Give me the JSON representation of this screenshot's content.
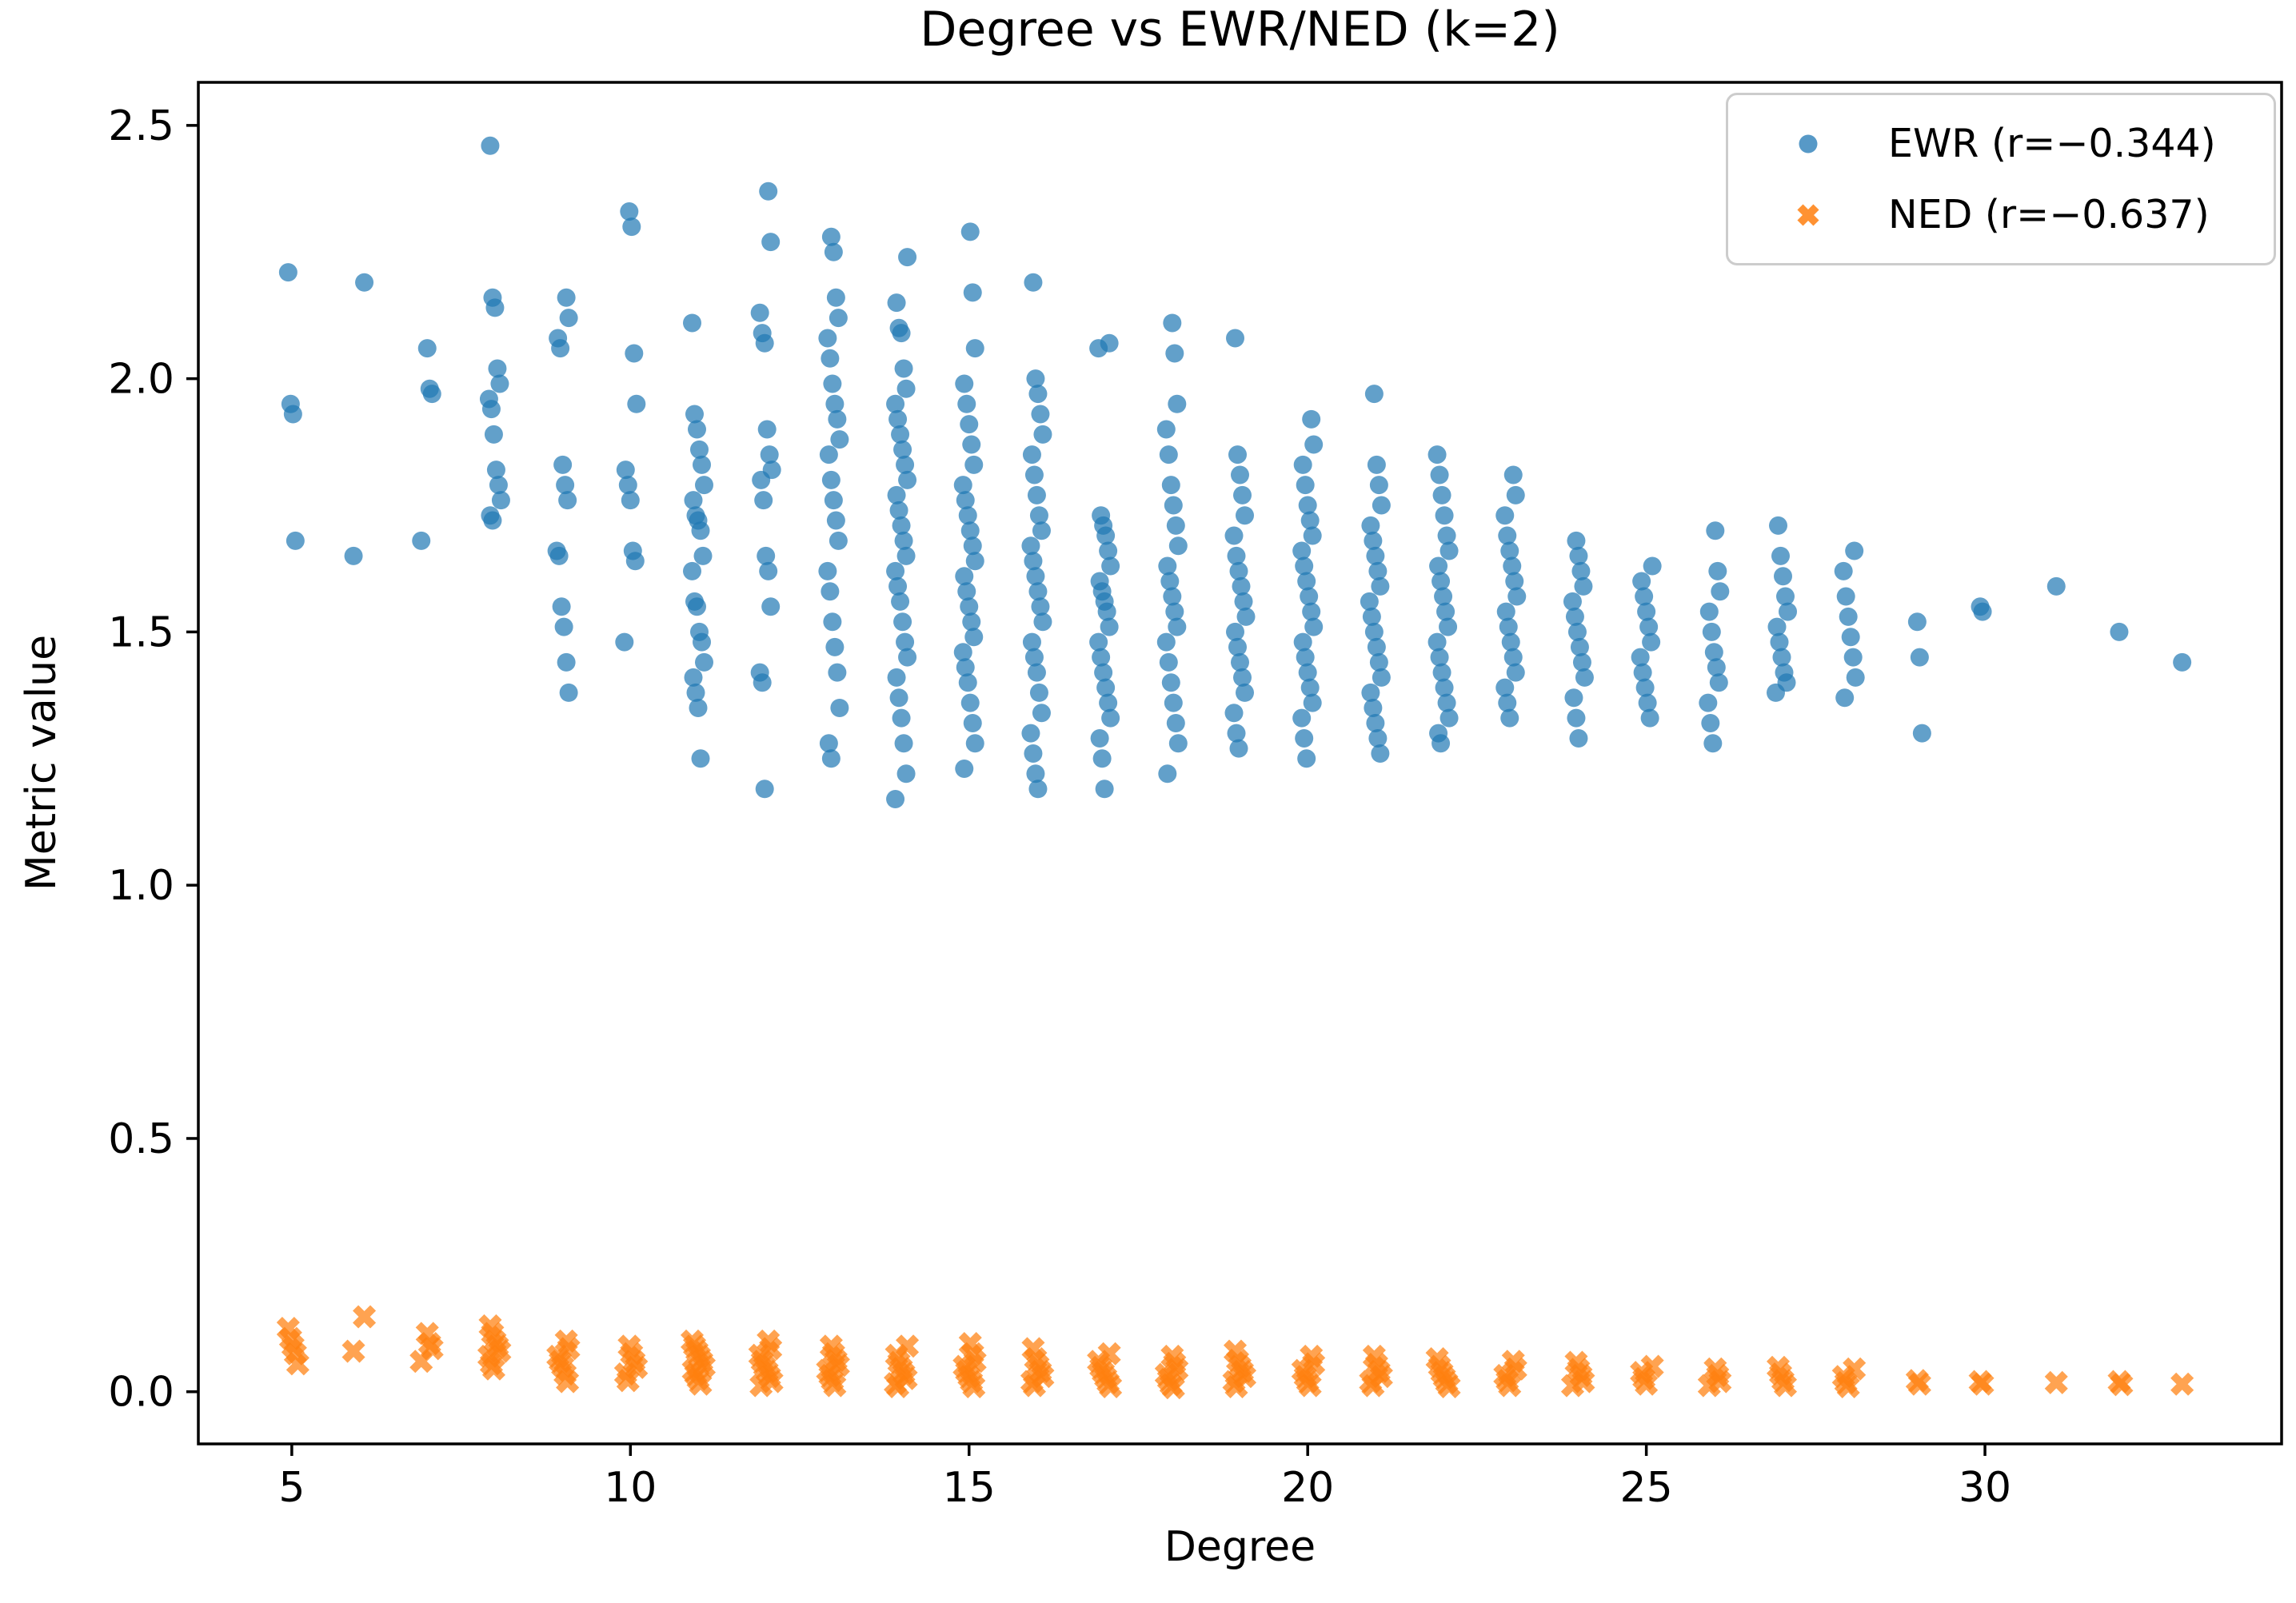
{
  "figure": {
    "title": "Degree vs EWR/NED (k=2)",
    "xlabel": "Degree",
    "ylabel": "Metric value"
  },
  "legend": {
    "entries": [
      {
        "label": "EWR (r=−0.344)",
        "marker": "circle-icon",
        "color": "#1f77b4"
      },
      {
        "label": "NED (r=−0.637)",
        "marker": "x-icon",
        "color": "#ff7f0e"
      }
    ]
  },
  "chart_data": {
    "type": "scatter",
    "title": "Degree vs EWR/NED (k=2)",
    "xlabel": "Degree",
    "ylabel": "Metric value",
    "xlim": [
      3.62,
      34.38
    ],
    "ylim": [
      -0.103,
      2.585
    ],
    "xticks": [
      5,
      10,
      15,
      20,
      25,
      30
    ],
    "yticks": [
      0.0,
      0.5,
      1.0,
      1.5,
      2.0,
      2.5
    ],
    "grid": false,
    "legend_position": "upper right",
    "series": [
      {
        "name": "EWR (r=−0.344)",
        "marker": "circle",
        "color": "#1f77b4",
        "alpha": 0.7,
        "points_by_degree": {
          "5": [
            2.21,
            1.95,
            1.93,
            1.68
          ],
          "6": [
            2.19,
            1.65
          ],
          "7": [
            2.06,
            1.98,
            1.97,
            1.68
          ],
          "8": [
            2.46,
            2.16,
            2.14,
            2.02,
            1.99,
            1.96,
            1.94,
            1.89,
            1.82,
            1.79,
            1.76,
            1.73,
            1.72
          ],
          "9": [
            2.16,
            2.12,
            2.08,
            2.06,
            1.83,
            1.79,
            1.76,
            1.66,
            1.65,
            1.55,
            1.51,
            1.44,
            1.38
          ],
          "10": [
            2.33,
            2.3,
            2.05,
            1.95,
            1.82,
            1.79,
            1.76,
            1.66,
            1.64,
            1.48
          ],
          "11": [
            2.11,
            1.93,
            1.9,
            1.86,
            1.83,
            1.79,
            1.76,
            1.73,
            1.72,
            1.7,
            1.65,
            1.62,
            1.56,
            1.55,
            1.5,
            1.48,
            1.44,
            1.41,
            1.38,
            1.35,
            1.25
          ],
          "12": [
            2.37,
            2.27,
            2.13,
            2.09,
            2.07,
            1.9,
            1.85,
            1.82,
            1.8,
            1.76,
            1.65,
            1.62,
            1.55,
            1.42,
            1.4,
            1.19
          ],
          "13": [
            2.28,
            2.25,
            2.16,
            2.12,
            2.08,
            2.04,
            1.99,
            1.95,
            1.92,
            1.88,
            1.85,
            1.8,
            1.76,
            1.72,
            1.68,
            1.62,
            1.58,
            1.52,
            1.47,
            1.42,
            1.35,
            1.28,
            1.25
          ],
          "14": [
            2.24,
            2.15,
            2.1,
            2.09,
            2.02,
            1.98,
            1.95,
            1.92,
            1.89,
            1.86,
            1.83,
            1.8,
            1.77,
            1.74,
            1.71,
            1.68,
            1.65,
            1.62,
            1.59,
            1.56,
            1.52,
            1.48,
            1.45,
            1.41,
            1.37,
            1.33,
            1.28,
            1.22,
            1.17
          ],
          "15": [
            2.29,
            2.17,
            2.06,
            1.99,
            1.95,
            1.91,
            1.87,
            1.83,
            1.79,
            1.76,
            1.73,
            1.7,
            1.67,
            1.64,
            1.61,
            1.58,
            1.55,
            1.52,
            1.49,
            1.46,
            1.43,
            1.4,
            1.36,
            1.32,
            1.28,
            1.23
          ],
          "16": [
            2.19,
            2.0,
            1.97,
            1.93,
            1.89,
            1.85,
            1.81,
            1.77,
            1.73,
            1.7,
            1.67,
            1.64,
            1.61,
            1.58,
            1.55,
            1.52,
            1.48,
            1.45,
            1.42,
            1.38,
            1.34,
            1.3,
            1.26,
            1.22,
            1.19
          ],
          "17": [
            2.07,
            2.06,
            1.73,
            1.71,
            1.69,
            1.66,
            1.63,
            1.6,
            1.58,
            1.56,
            1.54,
            1.51,
            1.48,
            1.45,
            1.42,
            1.39,
            1.36,
            1.33,
            1.29,
            1.25,
            1.19
          ],
          "18": [
            2.11,
            2.05,
            1.95,
            1.9,
            1.85,
            1.79,
            1.75,
            1.71,
            1.67,
            1.63,
            1.6,
            1.57,
            1.54,
            1.51,
            1.48,
            1.44,
            1.4,
            1.36,
            1.32,
            1.28,
            1.22
          ],
          "19": [
            2.08,
            1.85,
            1.81,
            1.77,
            1.73,
            1.69,
            1.65,
            1.62,
            1.59,
            1.56,
            1.53,
            1.5,
            1.47,
            1.44,
            1.41,
            1.38,
            1.34,
            1.3,
            1.27
          ],
          "20": [
            1.92,
            1.87,
            1.83,
            1.79,
            1.75,
            1.72,
            1.69,
            1.66,
            1.63,
            1.6,
            1.57,
            1.54,
            1.51,
            1.48,
            1.45,
            1.42,
            1.39,
            1.36,
            1.33,
            1.29,
            1.25
          ],
          "21": [
            1.97,
            1.83,
            1.79,
            1.75,
            1.71,
            1.68,
            1.65,
            1.62,
            1.59,
            1.56,
            1.53,
            1.5,
            1.47,
            1.44,
            1.41,
            1.38,
            1.35,
            1.32,
            1.29,
            1.26
          ],
          "22": [
            1.85,
            1.81,
            1.77,
            1.73,
            1.69,
            1.66,
            1.63,
            1.6,
            1.57,
            1.54,
            1.51,
            1.48,
            1.45,
            1.42,
            1.39,
            1.36,
            1.33,
            1.3,
            1.28
          ],
          "23": [
            1.81,
            1.77,
            1.73,
            1.69,
            1.66,
            1.63,
            1.6,
            1.57,
            1.54,
            1.51,
            1.48,
            1.45,
            1.42,
            1.39,
            1.36,
            1.33
          ],
          "24": [
            1.68,
            1.65,
            1.62,
            1.59,
            1.56,
            1.53,
            1.5,
            1.47,
            1.44,
            1.41,
            1.37,
            1.33,
            1.29
          ],
          "25": [
            1.63,
            1.6,
            1.57,
            1.54,
            1.51,
            1.48,
            1.45,
            1.42,
            1.39,
            1.36,
            1.33
          ],
          "26": [
            1.7,
            1.62,
            1.58,
            1.54,
            1.5,
            1.46,
            1.43,
            1.4,
            1.36,
            1.32,
            1.28
          ],
          "27": [
            1.71,
            1.65,
            1.61,
            1.57,
            1.54,
            1.51,
            1.48,
            1.45,
            1.42,
            1.4,
            1.38
          ],
          "28": [
            1.66,
            1.62,
            1.57,
            1.53,
            1.49,
            1.45,
            1.41,
            1.37
          ],
          "29": [
            1.52,
            1.45,
            1.3
          ],
          "30": [
            1.55,
            1.54
          ],
          "31": [
            1.59
          ],
          "32": [
            1.5
          ],
          "33": [
            1.44
          ]
        }
      },
      {
        "name": "NED (r=−0.637)",
        "marker": "X",
        "color": "#ff7f0e",
        "alpha": 0.72,
        "points_by_degree": {
          "5": [
            0.125,
            0.105,
            0.09,
            0.075,
            0.055
          ],
          "6": [
            0.148,
            0.08
          ],
          "7": [
            0.115,
            0.095,
            0.085,
            0.06
          ],
          "8": [
            0.13,
            0.115,
            0.1,
            0.09,
            0.08,
            0.07,
            0.055,
            0.045
          ],
          "9": [
            0.1,
            0.085,
            0.07,
            0.06,
            0.05,
            0.035,
            0.02
          ],
          "10": [
            0.09,
            0.075,
            0.06,
            0.048,
            0.035,
            0.022
          ],
          "11": [
            0.1,
            0.09,
            0.08,
            0.07,
            0.06,
            0.05,
            0.042,
            0.034,
            0.025,
            0.015
          ],
          "12": [
            0.1,
            0.085,
            0.072,
            0.06,
            0.05,
            0.04,
            0.03,
            0.02,
            0.012
          ],
          "13": [
            0.09,
            0.075,
            0.062,
            0.052,
            0.042,
            0.032,
            0.022,
            0.012
          ],
          "14": [
            0.09,
            0.072,
            0.058,
            0.046,
            0.036,
            0.026,
            0.016,
            0.01
          ],
          "15": [
            0.095,
            0.075,
            0.06,
            0.05,
            0.04,
            0.03,
            0.02,
            0.01
          ],
          "16": [
            0.085,
            0.065,
            0.052,
            0.04,
            0.03,
            0.02,
            0.012
          ],
          "17": [
            0.075,
            0.06,
            0.048,
            0.038,
            0.028,
            0.018,
            0.01
          ],
          "18": [
            0.07,
            0.056,
            0.044,
            0.034,
            0.024,
            0.014,
            0.008
          ],
          "19": [
            0.08,
            0.062,
            0.05,
            0.04,
            0.03,
            0.02,
            0.01
          ],
          "20": [
            0.07,
            0.055,
            0.042,
            0.03,
            0.02,
            0.012
          ],
          "21": [
            0.07,
            0.054,
            0.04,
            0.03,
            0.02,
            0.012
          ],
          "22": [
            0.065,
            0.05,
            0.038,
            0.028,
            0.018,
            0.01
          ],
          "23": [
            0.06,
            0.045,
            0.032,
            0.022,
            0.012
          ],
          "24": [
            0.058,
            0.044,
            0.032,
            0.02,
            0.012
          ],
          "25": [
            0.05,
            0.038,
            0.026,
            0.015
          ],
          "26": [
            0.045,
            0.032,
            0.02,
            0.012
          ],
          "27": [
            0.048,
            0.035,
            0.022,
            0.012
          ],
          "28": [
            0.045,
            0.03,
            0.018,
            0.01
          ],
          "29": [
            0.022,
            0.015
          ],
          "30": [
            0.02,
            0.015
          ],
          "31": [
            0.018
          ],
          "32": [
            0.02,
            0.014
          ],
          "33": [
            0.015
          ]
        }
      }
    ]
  }
}
